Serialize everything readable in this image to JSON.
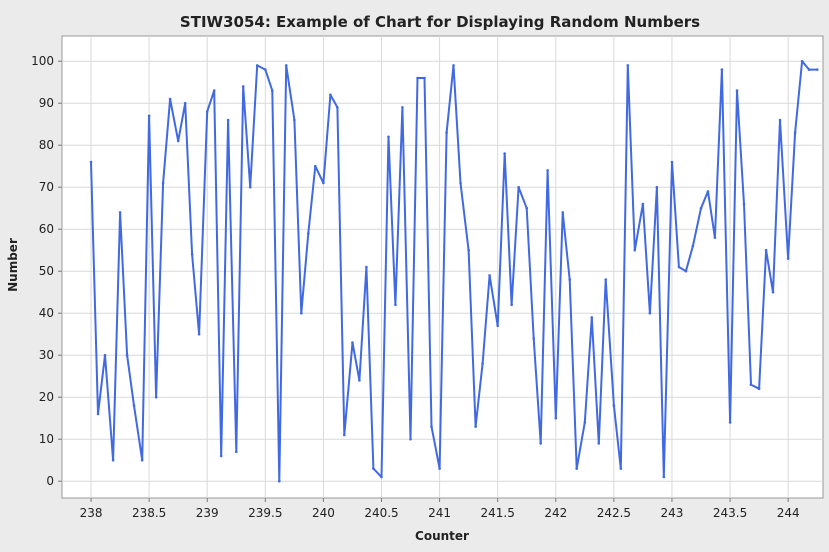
{
  "chart_data": {
    "type": "line",
    "title": "STIW3054: Example of Chart for Displaying Random Numbers",
    "xlabel": "Counter",
    "ylabel": "Number",
    "xlim": [
      237.75,
      244.3
    ],
    "ylim": [
      -4,
      106
    ],
    "xticks": [
      "238",
      "238.5",
      "239",
      "239.5",
      "240",
      "240.5",
      "241",
      "241.5",
      "242",
      "242.5",
      "243",
      "243.5",
      "244"
    ],
    "xtick_values": [
      238,
      238.5,
      239,
      239.5,
      240,
      240.5,
      241,
      241.5,
      242,
      242.5,
      243,
      243.5,
      244
    ],
    "yticks": [
      "0",
      "10",
      "20",
      "30",
      "40",
      "50",
      "60",
      "70",
      "80",
      "90",
      "100"
    ],
    "ytick_values": [
      0,
      10,
      20,
      30,
      40,
      50,
      60,
      70,
      80,
      90,
      100
    ],
    "grid": true,
    "legend": "none",
    "series": [
      {
        "color": "#4169e1",
        "x": [
          238.0,
          238.06,
          238.12,
          238.19,
          238.25,
          238.31,
          238.37,
          238.44,
          238.5,
          238.56,
          238.62,
          238.68,
          238.75,
          238.81,
          238.87,
          238.93,
          239.0,
          239.06,
          239.12,
          239.18,
          239.25,
          239.31,
          239.37,
          239.43,
          239.5,
          239.56,
          239.62,
          239.68,
          239.75,
          239.81,
          239.87,
          239.93,
          240.0,
          240.06,
          240.12,
          240.18,
          240.25,
          240.31,
          240.37,
          240.43,
          240.5,
          240.56,
          240.62,
          240.68,
          240.75,
          240.81,
          240.87,
          240.93,
          241.0,
          241.06,
          241.12,
          241.18,
          241.25,
          241.31,
          241.37,
          241.43,
          241.5,
          241.56,
          241.62,
          241.68,
          241.75,
          241.81,
          241.87,
          241.93,
          242.0,
          242.06,
          242.12,
          242.18,
          242.25,
          242.31,
          242.37,
          242.43,
          242.5,
          242.56,
          242.62,
          242.68,
          242.75,
          242.81,
          242.87,
          242.93,
          243.0,
          243.06,
          243.12,
          243.18,
          243.25,
          243.31,
          243.37,
          243.43,
          243.5,
          243.56,
          243.62,
          243.68,
          243.75,
          243.81,
          243.87,
          243.93,
          244.0,
          244.06,
          244.12,
          244.18,
          244.25
        ],
        "y": [
          76,
          16,
          30,
          5,
          64,
          30,
          18,
          5,
          87,
          20,
          71,
          91,
          81,
          90,
          54,
          35,
          88,
          93,
          6,
          86,
          7,
          94,
          70,
          99,
          98,
          93,
          0,
          99,
          86,
          40,
          59,
          75,
          71,
          92,
          89,
          11,
          33,
          24,
          51,
          3,
          1,
          82,
          42,
          89,
          10,
          96,
          96,
          13,
          3,
          83,
          99,
          71,
          55,
          13,
          28,
          49,
          37,
          78,
          42,
          70,
          65,
          34,
          9,
          74,
          15,
          64,
          48,
          3,
          14,
          39,
          9,
          48,
          18,
          3,
          99,
          55,
          66,
          40,
          70,
          1,
          76,
          51,
          50,
          56,
          65,
          69,
          58,
          98,
          14,
          93,
          66,
          23,
          22,
          55,
          45,
          86,
          53,
          83,
          100,
          98,
          98
        ]
      }
    ]
  }
}
